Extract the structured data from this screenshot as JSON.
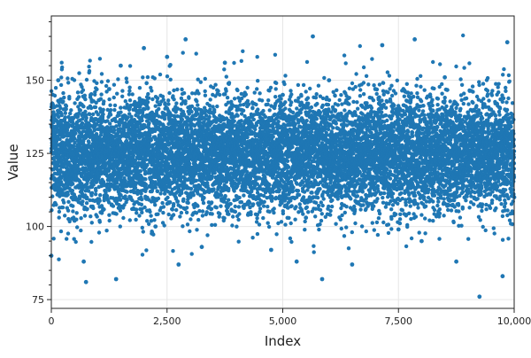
{
  "chart_data": {
    "type": "scatter",
    "title": "",
    "xlabel": "Index",
    "ylabel": "Value",
    "xlim": [
      0,
      10000
    ],
    "ylim": [
      72,
      172
    ],
    "x_ticks": [
      0,
      2500,
      5000,
      7500,
      10000
    ],
    "x_tick_labels": [
      "0",
      "2,500",
      "5,000",
      "7,500",
      "10,000"
    ],
    "y_ticks": [
      75,
      100,
      125,
      150
    ],
    "y_tick_labels": [
      "75",
      "100",
      "125",
      "150"
    ],
    "grid": true,
    "legend": "none",
    "marker_color": "#1f77b4",
    "n_points": 10000,
    "distribution": {
      "mean": 125,
      "std": 10
    },
    "x": [
      0,
      80,
      150,
      300,
      500,
      700,
      750,
      1000,
      1250,
      1400,
      1500,
      1750,
      1900,
      2000,
      2250,
      2500,
      2750,
      2900,
      3000,
      3250,
      3500,
      3750,
      4000,
      4250,
      4500,
      4750,
      5000,
      5300,
      5500,
      5650,
      5850,
      6000,
      6250,
      6500,
      6750,
      7000,
      7150,
      7500,
      7750,
      7850,
      8000,
      8250,
      8500,
      8750,
      9000,
      9250,
      9500,
      9750,
      9850,
      10000
    ],
    "y": [
      90,
      108,
      150,
      140,
      102,
      88,
      81,
      118,
      147,
      82,
      155,
      130,
      116,
      161,
      100,
      158,
      87,
      164,
      124,
      93,
      139,
      156,
      132,
      104,
      121,
      92,
      145,
      88,
      103,
      165,
      82,
      150,
      113,
      87,
      128,
      147,
      162,
      99,
      118,
      164,
      95,
      130,
      151,
      88,
      121,
      76,
      140,
      83,
      163,
      110
    ]
  }
}
